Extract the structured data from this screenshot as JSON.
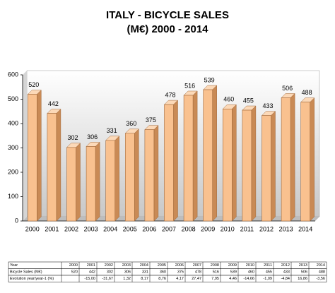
{
  "chart_data": {
    "type": "bar3d",
    "title": "ITALY - BICYCLE SALES",
    "subtitle": "(M€) 2000 - 2014",
    "categories": [
      "2000",
      "2001",
      "2002",
      "2003",
      "2004",
      "2005",
      "2006",
      "2007",
      "2008",
      "2009",
      "2010",
      "2011",
      "2012",
      "2013",
      "2014"
    ],
    "values": [
      520,
      442,
      302,
      306,
      331,
      360,
      375,
      478,
      516,
      539,
      460,
      455,
      433,
      506,
      488
    ],
    "color": "#f9c18f",
    "ylim": [
      0,
      600
    ],
    "yticks": [
      0,
      100,
      200,
      300,
      400,
      500,
      600
    ],
    "grid": false
  },
  "table": {
    "header": "Year",
    "sales_label": "Bicycle Sales (M€)",
    "evolution_label": "Evolution year/year-1 (%)",
    "evolution": [
      null,
      "-15,00",
      "-31,67",
      "1,32",
      "8,17",
      "8,76",
      "4,17",
      "27,47",
      "7,95",
      "4,46",
      "-14,66",
      "-1,09",
      "-4,84",
      "16,86",
      "-3,56"
    ]
  }
}
